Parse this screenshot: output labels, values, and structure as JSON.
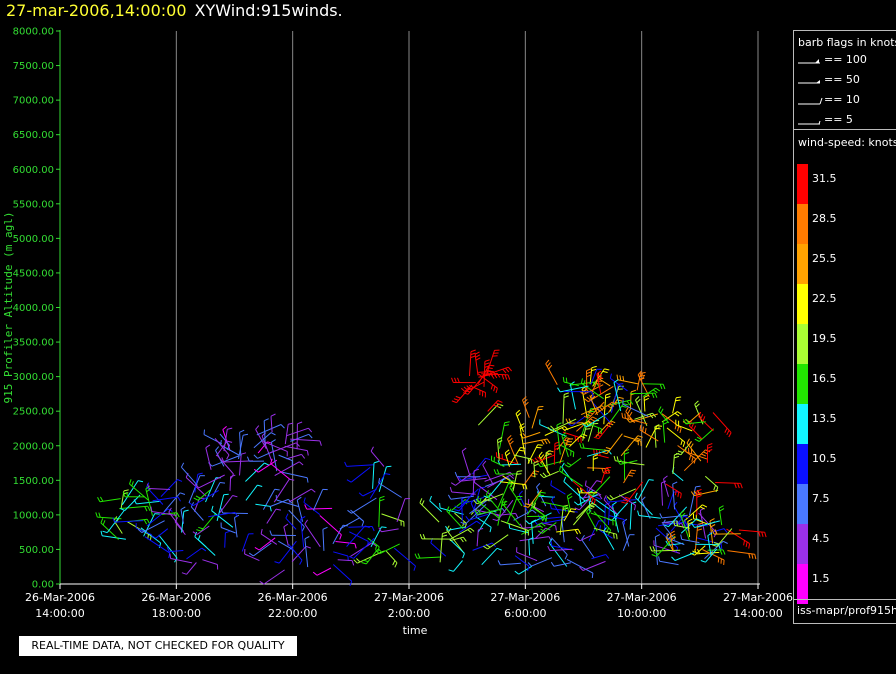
{
  "header": {
    "date": "27-mar-2006,14:00:00",
    "name": "XYWind:915winds."
  },
  "qc_note": "REAL-TIME DATA, NOT CHECKED FOR QUALITY",
  "legend": {
    "barb_title": "barb flags in knots",
    "barb_items": [
      "== 100",
      "== 50",
      "== 10",
      "== 5"
    ],
    "speed_title": "wind-speed: knots",
    "footer": "iss-mapr/prof915h"
  },
  "colors": {
    "axis": "#33dd33",
    "grid": "#888888",
    "scale": [
      "#ff00ff",
      "#9a30e8",
      "#4a78ff",
      "#0a10ff",
      "#11f6ff",
      "#22e600",
      "#aafe33",
      "#ffff00",
      "#ffa200",
      "#ff7b00",
      "#ff0000"
    ]
  },
  "chart_data": {
    "type": "scatter",
    "title": "27-mar-2006,14:00:00 XYWind:915winds.",
    "xlabel": "time",
    "ylabel": "915 Profiler Altitude (m agl)",
    "ylim": [
      0,
      8000
    ],
    "yticks": [
      "0.00",
      "500.00",
      "1000.00",
      "1500.00",
      "2000.00",
      "2500.00",
      "3000.00",
      "3500.00",
      "4000.00",
      "4500.00",
      "5000.00",
      "5500.00",
      "6000.00",
      "6500.00",
      "7000.00",
      "7500.00",
      "8000.00"
    ],
    "xticks": [
      {
        "date": "26-Mar-2006",
        "time": "14:00:00"
      },
      {
        "date": "26-Mar-2006",
        "time": "18:00:00"
      },
      {
        "date": "26-Mar-2006",
        "time": "22:00:00"
      },
      {
        "date": "27-Mar-2006",
        "time": "2:00:00"
      },
      {
        "date": "27-Mar-2006",
        "time": "6:00:00"
      },
      {
        "date": "27-Mar-2006",
        "time": "10:00:00"
      },
      {
        "date": "27-Mar-2006",
        "time": "14:00:00"
      }
    ],
    "x_start": "2006-03-26 14:00",
    "x_end": "2006-03-27 14:00",
    "colorbar_labels": [
      "1.5",
      "4.5",
      "7.5",
      "10.5",
      "13.5",
      "16.5",
      "19.5",
      "22.5",
      "25.5",
      "28.5",
      "31.5"
    ],
    "grid": true,
    "legend_position": "right",
    "note": "wind barbs plotted at altitude vs time; clusters estimated from the image",
    "clusters": [
      {
        "t0": "2006-03-26 16:00",
        "t1": "2006-03-26 16:20",
        "alt": [
          550,
          1250
        ],
        "speed": [
          12,
          20
        ]
      },
      {
        "t0": "2006-03-26 16:40",
        "t1": "2006-03-26 17:40",
        "alt": [
          550,
          1300
        ],
        "speed": [
          8,
          16
        ]
      },
      {
        "t0": "2006-03-26 17:40",
        "t1": "2006-03-26 21:00",
        "alt": [
          300,
          1500
        ],
        "speed": [
          3,
          16
        ]
      },
      {
        "t0": "2006-03-26 19:00",
        "t1": "2006-03-26 22:10",
        "alt": [
          1500,
          2200
        ],
        "speed": [
          2,
          8
        ]
      },
      {
        "t0": "2006-03-26 21:00",
        "t1": "2006-03-27 00:00",
        "alt": [
          200,
          1200
        ],
        "speed": [
          2,
          12
        ]
      },
      {
        "t0": "2006-03-27 00:30",
        "t1": "2006-03-27 01:50",
        "alt": [
          450,
          1750
        ],
        "speed": [
          2,
          20
        ]
      },
      {
        "t0": "2006-03-27 03:00",
        "t1": "2006-03-27 04:20",
        "alt": [
          300,
          1100
        ],
        "speed": [
          10,
          20
        ]
      },
      {
        "t0": "2006-03-27 04:00",
        "t1": "2006-03-27 05:00",
        "alt": [
          900,
          1600
        ],
        "speed": [
          3,
          12
        ]
      },
      {
        "t0": "2006-03-27 04:00",
        "t1": "2006-03-27 12:30",
        "alt": [
          250,
          1300
        ],
        "speed": [
          3,
          14
        ]
      },
      {
        "t0": "2006-03-27 04:20",
        "t1": "2006-03-27 12:40",
        "alt": [
          1300,
          2500
        ],
        "speed": [
          14,
          33
        ]
      },
      {
        "t0": "2006-03-27 05:00",
        "t1": "2006-03-27 08:30",
        "alt": [
          700,
          1900
        ],
        "speed": [
          15,
          22
        ]
      },
      {
        "t0": "2006-03-27 07:00",
        "t1": "2006-03-27 10:30",
        "alt": [
          2300,
          2900
        ],
        "speed": [
          8,
          32
        ]
      },
      {
        "t0": "2006-03-27 04:00",
        "t1": "2006-03-27 04:40",
        "alt": [
          2800,
          3100
        ],
        "speed": [
          30,
          34
        ]
      },
      {
        "t0": "2006-03-27 11:00",
        "t1": "2006-03-27 13:40",
        "alt": [
          400,
          1000
        ],
        "speed": [
          6,
          32
        ]
      }
    ]
  }
}
